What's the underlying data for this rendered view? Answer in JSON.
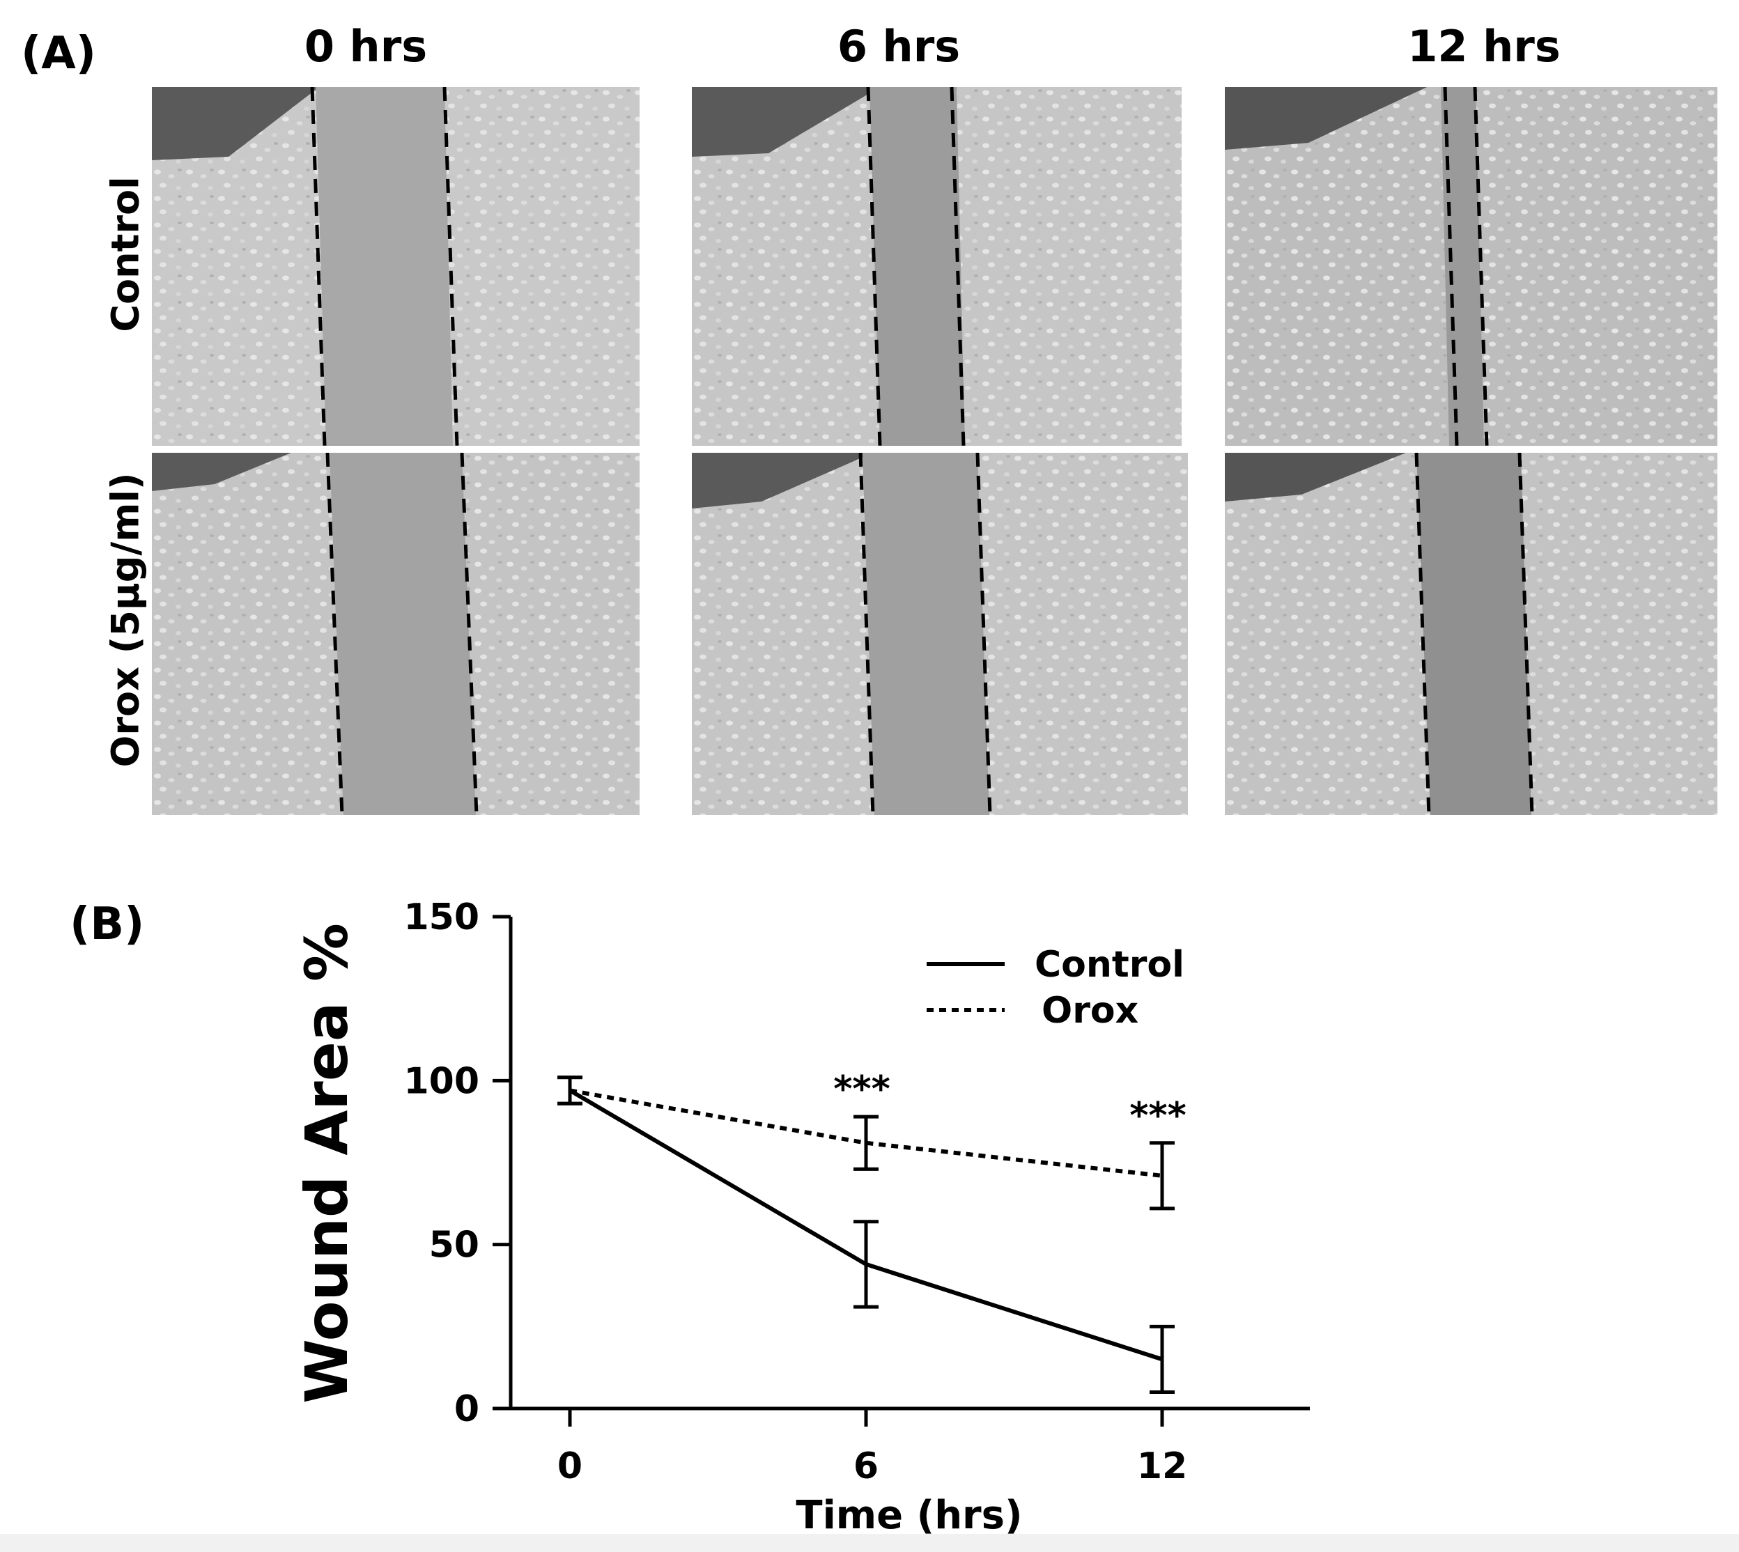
{
  "panel_a": {
    "letter": "(A)",
    "columns": [
      "0 hrs",
      "6 hrs",
      "12 hrs"
    ],
    "rows": [
      "Control",
      "Orox (5µg/ml)"
    ]
  },
  "panel_b": {
    "letter": "(B)"
  },
  "chart_data": {
    "type": "line",
    "xlabel": "Time (hrs)",
    "ylabel": "Wound Area %",
    "x": [
      0,
      6,
      12
    ],
    "xticks": [
      "0",
      "6",
      "12"
    ],
    "ylim": [
      0,
      150
    ],
    "yticks": [
      "0",
      "50",
      "100",
      "150"
    ],
    "series": [
      {
        "name": "Control",
        "style": "solid",
        "values": [
          97,
          44,
          15
        ],
        "error": [
          4,
          13,
          10
        ]
      },
      {
        "name": "Orox",
        "style": "dotted",
        "values": [
          97,
          81,
          71
        ],
        "error": [
          4,
          8,
          10
        ]
      }
    ],
    "annotations": [
      {
        "x": 6,
        "text": "***"
      },
      {
        "x": 12,
        "text": "***"
      }
    ],
    "legend_position": "top-right",
    "grid": false
  }
}
